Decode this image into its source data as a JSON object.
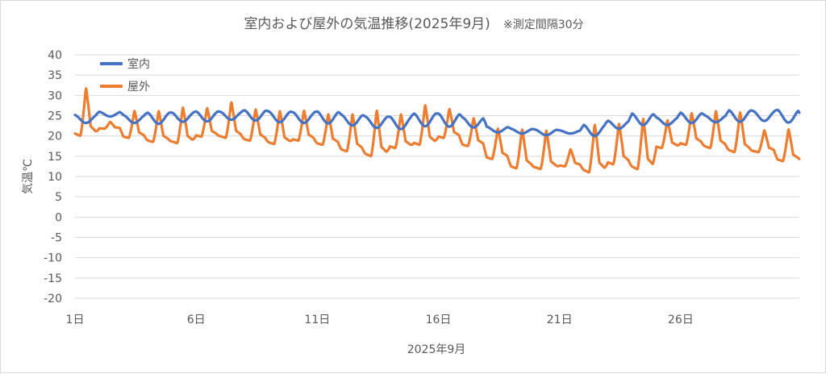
{
  "chart_data": {
    "type": "line",
    "title": "室内および屋外の気温推移(2025年9月)",
    "note": "※測定間隔30分",
    "xlabel": "2025年9月",
    "ylabel": "気温℃",
    "ylim": [
      -20,
      40
    ],
    "yticks": [
      40,
      35,
      30,
      25,
      20,
      15,
      10,
      5,
      0,
      -5,
      -10,
      -15,
      -20
    ],
    "xlim": [
      1,
      30.9
    ],
    "xticks": [
      {
        "day": 1,
        "label": "1日"
      },
      {
        "day": 6,
        "label": "6日"
      },
      {
        "day": 11,
        "label": "11日"
      },
      {
        "day": 16,
        "label": "16日"
      },
      {
        "day": 21,
        "label": "21日"
      },
      {
        "day": 26,
        "label": "26日"
      }
    ],
    "grid": true,
    "legend_position": "top-left",
    "series": [
      {
        "name": "室内",
        "color": "#4472C4",
        "daily_min": [
          23.2,
          24.8,
          23.2,
          23.0,
          23.5,
          23.6,
          24.0,
          23.8,
          23.4,
          23.2,
          23.1,
          22.6,
          22.0,
          21.7,
          22.4,
          22.3,
          22.1,
          20.9,
          20.6,
          20.2,
          20.6,
          20.0,
          21.8,
          22.7,
          22.7,
          23.2,
          23.4,
          23.5,
          23.7,
          23.3,
          23.8
        ],
        "daily_max": [
          25.2,
          26.0,
          25.2,
          25.8,
          25.8,
          26.1,
          26.0,
          26.4,
          26.1,
          25.9,
          26.1,
          25.3,
          24.8,
          24.8,
          25.6,
          25.6,
          24.6,
          22.3,
          21.8,
          21.6,
          21.4,
          22.8,
          23.8,
          25.6,
          24.6,
          25.8,
          25.1,
          26.4,
          26.2,
          26.5,
          24.2
        ]
      },
      {
        "name": "屋外",
        "color": "#ED7D31",
        "daily_min": [
          20.0,
          21.8,
          19.5,
          18.5,
          18.2,
          19.8,
          19.5,
          18.8,
          18.0,
          18.8,
          17.8,
          16.2,
          15.0,
          17.0,
          17.8,
          19.5,
          17.5,
          14.3,
          12.0,
          11.8,
          12.5,
          11.0,
          13.0,
          11.8,
          17.0,
          17.8,
          17.0,
          16.0,
          16.0,
          13.8,
          14.2
        ],
        "daily_max": [
          32.0,
          23.5,
          26.3,
          26.3,
          27.2,
          27.0,
          28.5,
          26.7,
          26.3,
          26.4,
          25.5,
          25.5,
          26.5,
          25.5,
          27.8,
          26.8,
          24.5,
          22.0,
          21.8,
          21.5,
          16.8,
          23.0,
          23.2,
          24.5,
          24.0,
          25.8,
          26.3,
          26.0,
          21.5,
          21.8,
          14.2
        ]
      }
    ]
  }
}
